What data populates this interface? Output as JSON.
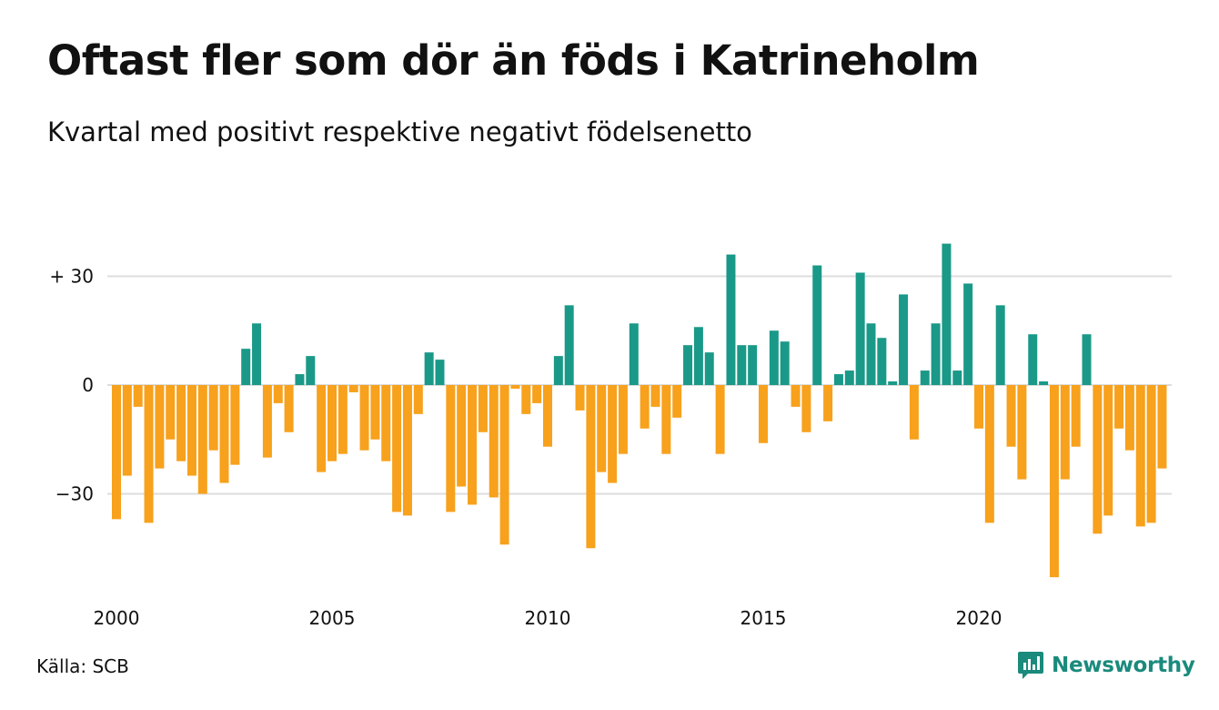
{
  "header": {
    "title": "Oftast fler som dör än föds i Katrineholm",
    "subtitle": "Kvartal med positivt respektive negativt födelsenetto"
  },
  "footer": {
    "source": "Källa: SCB",
    "brand": "Newsworthy",
    "brand_icon": "newsworthy-logo-icon"
  },
  "chart_data": {
    "type": "bar",
    "title": "Oftast fler som dör än föds i Katrineholm",
    "subtitle": "Kvartal med positivt respektive negativt födelsenetto",
    "xlabel": "",
    "ylabel": "",
    "start_year": 2000,
    "periods_per_year": 4,
    "x_tick_labels": [
      "2000",
      "2005",
      "2010",
      "2015",
      "2020"
    ],
    "y_ticks": [
      30,
      0,
      -30
    ],
    "y_tick_labels": [
      "+ 30",
      "0",
      "−30"
    ],
    "ylim": [
      -55,
      40
    ],
    "grid": true,
    "positive_color": "#1a9988",
    "negative_color": "#f7a11c",
    "values": [
      -37,
      -25,
      -6,
      -38,
      -23,
      -15,
      -21,
      -25,
      -30,
      -18,
      -27,
      -22,
      10,
      17,
      -20,
      -5,
      -13,
      3,
      8,
      -24,
      -21,
      -19,
      -2,
      -18,
      -15,
      -21,
      -35,
      -36,
      -8,
      9,
      7,
      -35,
      -28,
      -33,
      -13,
      -31,
      -44,
      -1,
      -8,
      -5,
      -17,
      8,
      22,
      -7,
      -45,
      -24,
      -27,
      -19,
      17,
      -12,
      -6,
      -19,
      -9,
      11,
      16,
      9,
      -19,
      36,
      11,
      11,
      -16,
      15,
      12,
      -6,
      -13,
      33,
      -10,
      3,
      4,
      31,
      17,
      13,
      1,
      25,
      -15,
      4,
      17,
      39,
      4,
      28,
      -12,
      -38,
      22,
      -17,
      -26,
      14,
      1,
      -53,
      -26,
      -17,
      14,
      -41,
      -36,
      -12,
      -18,
      -39,
      -38,
      -23
    ]
  }
}
